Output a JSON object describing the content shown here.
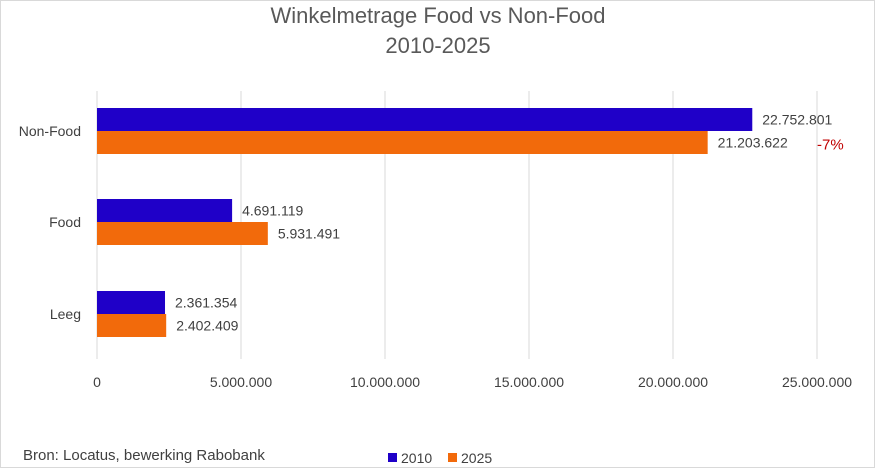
{
  "colors": {
    "series_2010": "#1f00c8",
    "series_2025": "#f26a0b",
    "annotation": "#c00000",
    "gridline": "#d9d9d9"
  },
  "source": "Bron: Locatus, bewerking Rabobank",
  "chart_data": {
    "type": "bar",
    "orientation": "horizontal",
    "title": [
      "Winkelmetrage Food vs Non-Food",
      "2010-2025"
    ],
    "categories": [
      "Non-Food",
      "Food",
      "Leeg"
    ],
    "series": [
      {
        "name": "2010",
        "values": [
          22752801,
          4691119,
          2361354
        ],
        "labels": [
          "22.752.801",
          "4.691.119",
          "2.361.354"
        ]
      },
      {
        "name": "2025",
        "values": [
          21203622,
          5931491,
          2402409
        ],
        "labels": [
          "21.203.622",
          "5.931.491",
          "2.402.409"
        ]
      }
    ],
    "xlim": [
      0,
      25000000
    ],
    "xticks": [
      0,
      5000000,
      10000000,
      15000000,
      20000000,
      25000000
    ],
    "xtick_labels": [
      "0",
      "5.000.000",
      "10.000.000",
      "15.000.000",
      "20.000.000",
      "25.000.000"
    ],
    "grid": true,
    "legend": "bottom",
    "annotations": [
      {
        "category": "Non-Food",
        "series": "2025",
        "text": "-7%"
      }
    ]
  }
}
